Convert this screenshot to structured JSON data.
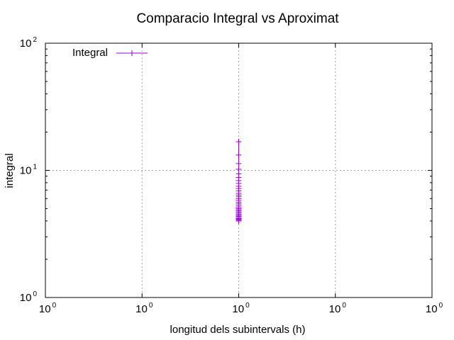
{
  "chart_data": {
    "type": "line",
    "title": "Comparacio Integral vs Aproximat",
    "xlabel": "longitud dels subintervals (h)",
    "ylabel": "integral",
    "x_scale": "log",
    "y_scale": "log",
    "xlim": [
      0.1,
      10
    ],
    "ylim": [
      1,
      100
    ],
    "grid": true,
    "legend_position": "top-left",
    "x_ticks": [
      {
        "base": "10",
        "exp": "0"
      },
      {
        "base": "10",
        "exp": "0"
      },
      {
        "base": "10",
        "exp": "0"
      },
      {
        "base": "10",
        "exp": "0"
      },
      {
        "base": "10",
        "exp": "0"
      }
    ],
    "y_ticks": [
      {
        "base": "10",
        "exp": "0"
      },
      {
        "base": "10",
        "exp": "1"
      },
      {
        "base": "10",
        "exp": "2"
      }
    ],
    "series": [
      {
        "name": "Integral",
        "color": "#9400d3",
        "marker": "plus",
        "points": [
          {
            "x": 1.0,
            "y": 16.8
          },
          {
            "x": 1.0,
            "y": 13.2
          },
          {
            "x": 1.0,
            "y": 11.3
          },
          {
            "x": 1.0,
            "y": 10.2
          },
          {
            "x": 1.0,
            "y": 9.4
          },
          {
            "x": 1.0,
            "y": 8.8
          },
          {
            "x": 1.0,
            "y": 8.3
          },
          {
            "x": 1.0,
            "y": 7.9
          },
          {
            "x": 1.0,
            "y": 7.5
          },
          {
            "x": 1.0,
            "y": 7.2
          },
          {
            "x": 1.0,
            "y": 6.9
          },
          {
            "x": 1.0,
            "y": 6.6
          },
          {
            "x": 1.0,
            "y": 6.4
          },
          {
            "x": 1.0,
            "y": 6.2
          },
          {
            "x": 1.0,
            "y": 6.0
          },
          {
            "x": 1.0,
            "y": 5.8
          },
          {
            "x": 1.0,
            "y": 5.6
          },
          {
            "x": 1.0,
            "y": 5.45
          },
          {
            "x": 1.0,
            "y": 5.3
          },
          {
            "x": 1.0,
            "y": 5.15
          },
          {
            "x": 1.0,
            "y": 5.0
          },
          {
            "x": 1.0,
            "y": 4.9
          },
          {
            "x": 1.0,
            "y": 4.8
          },
          {
            "x": 1.0,
            "y": 4.7
          },
          {
            "x": 1.0,
            "y": 4.6
          },
          {
            "x": 1.0,
            "y": 4.5
          },
          {
            "x": 1.0,
            "y": 4.42
          },
          {
            "x": 1.0,
            "y": 4.34
          },
          {
            "x": 1.0,
            "y": 4.26
          },
          {
            "x": 1.0,
            "y": 4.18
          },
          {
            "x": 1.0,
            "y": 4.12
          },
          {
            "x": 1.0,
            "y": 4.06
          },
          {
            "x": 1.0,
            "y": 4.0
          }
        ]
      }
    ]
  }
}
